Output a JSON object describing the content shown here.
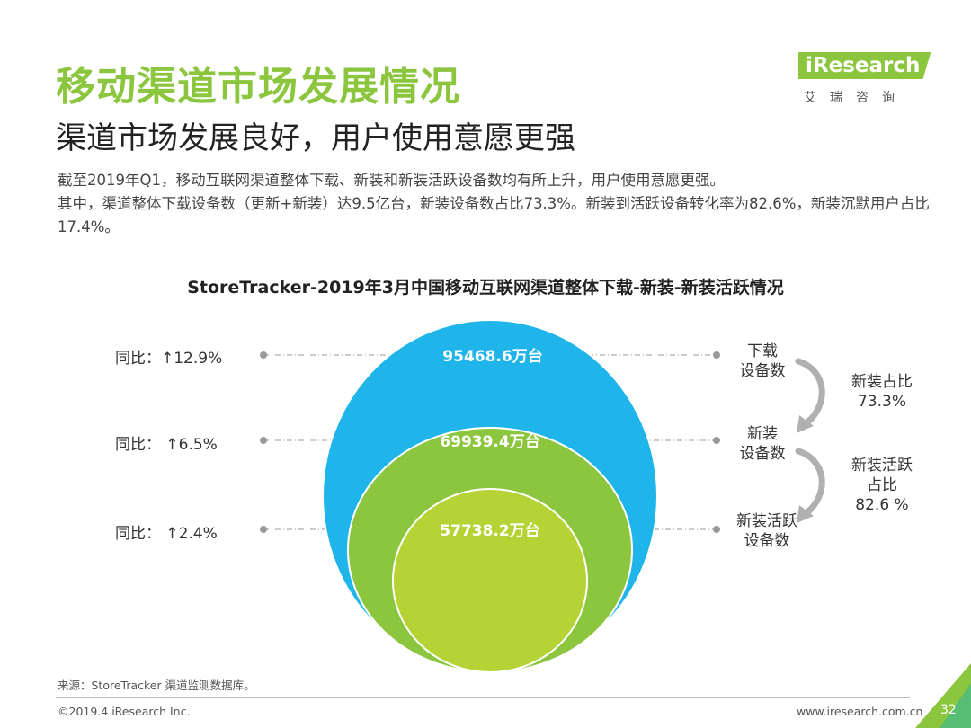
{
  "header": {
    "title": "移动渠道市场发展情况",
    "subtitle": "渠道市场发展良好，用户使用意愿更强",
    "paragraph_1": "截至2019年Q1，移动互联网渠道整体下载、新装和新装活跃设备数均有所上升，用户使用意愿更强。",
    "paragraph_2": "其中，渠道整体下载设备数（更新+新装）达9.5亿台，新装设备数占比73.3%。新装到活跃设备转化率为82.6%，新装沉默用户占比17.4%。"
  },
  "logo": {
    "text_en": "iResearch",
    "text_cn": "艾瑞咨询"
  },
  "colors": {
    "accent": "#8cc63f",
    "outer": "#1fb5ea",
    "middle": "#8cc63f",
    "inner": "#b5d334",
    "dot": "#999999"
  },
  "chart_data": {
    "type": "nested-circles",
    "title": "StoreTracker-2019年3月中国移动互联网渠道整体下载-新装-新装活跃情况",
    "unit": "万台",
    "series": [
      {
        "name": "下载设备数",
        "label_line1": "下载",
        "label_line2": "设备数",
        "value": 95468.6,
        "value_text": "95468.6万台",
        "yoy": "同比：↑12.9%"
      },
      {
        "name": "新装设备数",
        "label_line1": "新装",
        "label_line2": "设备数",
        "value": 69939.4,
        "value_text": "69939.4万台",
        "yoy": "同比： ↑6.5%"
      },
      {
        "name": "新装活跃设备数",
        "label_line1": "新装活跃",
        "label_line2": "设备数",
        "value": 57738.2,
        "value_text": "57738.2万台",
        "yoy": "同比： ↑2.4%"
      }
    ],
    "ratios": [
      {
        "name": "新装占比",
        "line1": "新装占比",
        "line2": "73.3%",
        "value": 73.3
      },
      {
        "name": "新装活跃占比",
        "line1": "新装活跃",
        "line2": "占比",
        "line3": "82.6 %",
        "value": 82.6
      }
    ]
  },
  "footer": {
    "source": "来源：StoreTracker 渠道监测数据库。",
    "copyright": "©2019.4 iResearch Inc.",
    "website": "www.iresearch.com.cn",
    "page": "32"
  }
}
